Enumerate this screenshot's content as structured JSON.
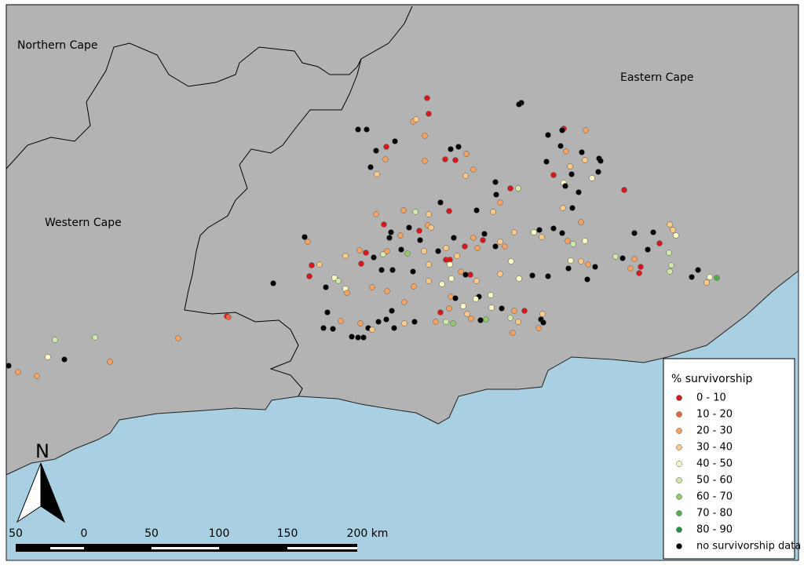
{
  "map": {
    "regions": [
      "Northern Cape",
      "Eastern Cape",
      "Western Cape"
    ],
    "legend": {
      "title": "% survivorship",
      "items": [
        {
          "label": "0 - 10",
          "color": "#d7191c"
        },
        {
          "label": "10 - 20",
          "color": "#e8603c"
        },
        {
          "label": "20 - 30",
          "color": "#f6a25e"
        },
        {
          "label": "30 - 40",
          "color": "#fdc985"
        },
        {
          "label": "40 - 50",
          "color": "#ffffc4"
        },
        {
          "label": "50 - 60",
          "color": "#cfeaa6"
        },
        {
          "label": "60 - 70",
          "color": "#91cb6b"
        },
        {
          "label": "70 - 80",
          "color": "#4fb04b"
        },
        {
          "label": "80 - 90",
          "color": "#1a9641"
        },
        {
          "label": "no survivorship data",
          "color": "#000000"
        }
      ]
    },
    "scale_bar": [
      "50",
      "0",
      "50",
      "100",
      "150",
      "200 km"
    ],
    "north": "N"
  }
}
